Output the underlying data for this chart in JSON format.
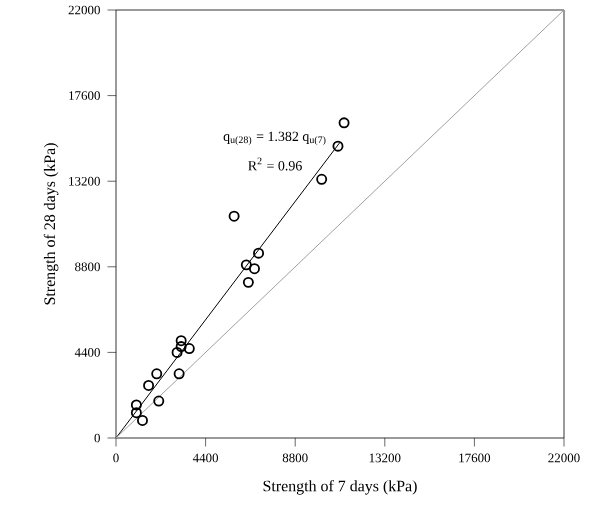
{
  "chart_data": {
    "type": "scatter",
    "xlabel": "Strength of 7 days (kPa)",
    "ylabel": "Strength of 28 days (kPa)",
    "xlim": [
      0,
      22000
    ],
    "ylim": [
      0,
      22000
    ],
    "xticks": [
      0,
      4400,
      8800,
      13200,
      17600,
      22000
    ],
    "yticks": [
      0,
      4400,
      8800,
      13200,
      17600,
      22000
    ],
    "grid": false,
    "marker": "circle",
    "annotations": [
      "q$_{u(28)}$ = 1.382 q$_{u(7)}$",
      "R$^{2}$ = 0.96"
    ],
    "series": [
      {
        "color": "#000000",
        "x": [
          11200,
          10900,
          10100,
          5800,
          7000,
          6400,
          6800,
          6500,
          3200,
          3600,
          3000,
          3200,
          3100,
          2000,
          1600,
          2100,
          1000,
          1000,
          1300
        ],
        "values": [
          16200,
          15000,
          13300,
          11400,
          9500,
          8900,
          8700,
          8000,
          5000,
          4600,
          4400,
          4700,
          3300,
          3300,
          2700,
          1900,
          1700,
          1300,
          900
        ]
      },
      {
        "type": "line",
        "color": "#000000",
        "marker": "none",
        "x": [
          0,
          11000
        ],
        "values": [
          0,
          15200
        ]
      },
      {
        "type": "line",
        "color": "#a0a0a0",
        "marker": "none",
        "x": [
          0,
          22000
        ],
        "values": [
          0,
          22000
        ]
      }
    ]
  }
}
